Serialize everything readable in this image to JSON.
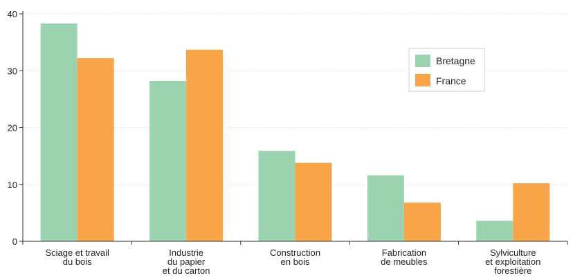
{
  "chart_data": {
    "type": "bar",
    "categories": [
      [
        "Sciage et travail",
        "du bois"
      ],
      [
        "Industrie",
        "du papier",
        "et du carton"
      ],
      [
        "Construction",
        "en bois"
      ],
      [
        "Fabrication",
        "de meubles"
      ],
      [
        "Sylviculture",
        "et exploitation",
        "forestière"
      ]
    ],
    "series": [
      {
        "name": "Bretagne",
        "color": "#9bd3b0",
        "values": [
          38.3,
          28.2,
          15.9,
          11.6,
          3.6
        ]
      },
      {
        "name": "France",
        "color": "#f8a54a",
        "values": [
          32.2,
          33.7,
          13.8,
          6.8,
          10.2
        ]
      }
    ],
    "yticks": [
      0,
      10,
      20,
      30,
      40
    ],
    "ylim": [
      0,
      40
    ],
    "grid": true,
    "legend_position": "top-right",
    "title": "",
    "xlabel": "",
    "ylabel": ""
  }
}
